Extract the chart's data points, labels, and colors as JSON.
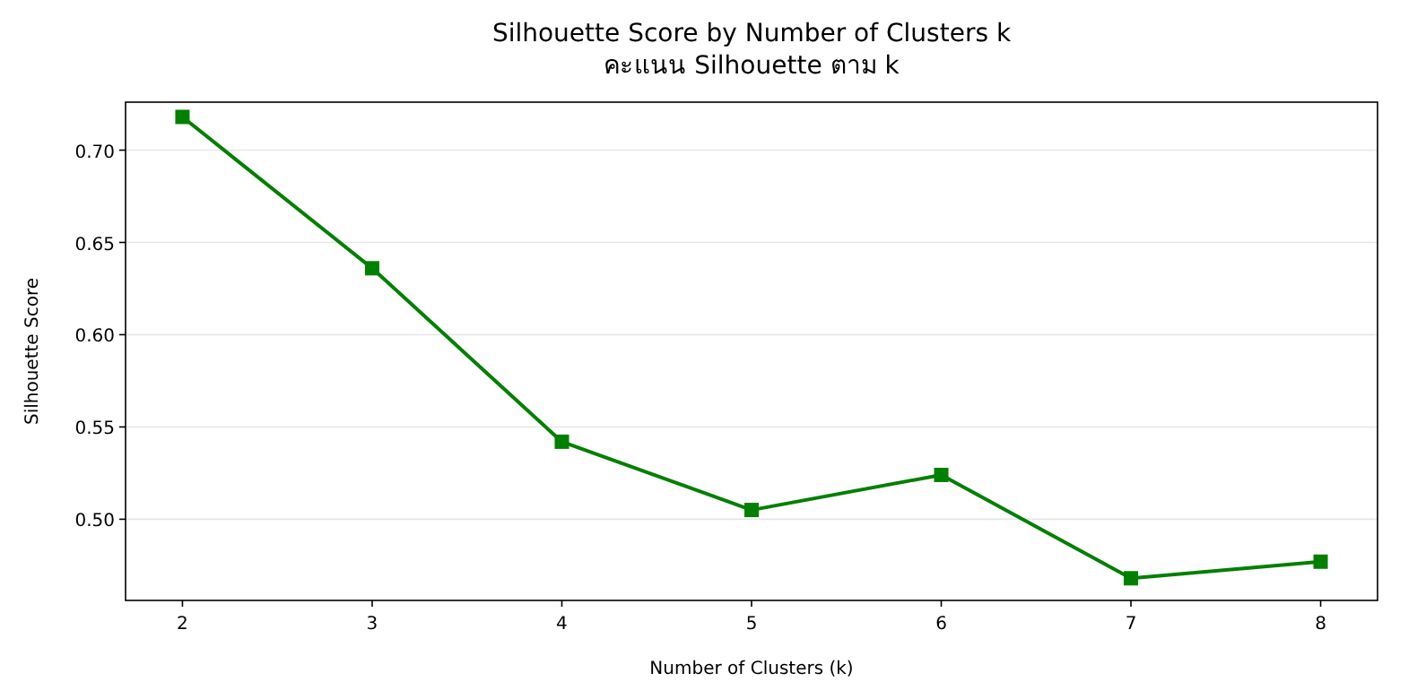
{
  "chart_data": {
    "type": "line",
    "title": "Silhouette Score by Number of Clusters k\nคะแนน Silhouette ตาม k",
    "xlabel": "Number of Clusters (k)",
    "ylabel": "Silhouette Score",
    "x": [
      2,
      3,
      4,
      5,
      6,
      7,
      8
    ],
    "series": [
      {
        "color": "#008000",
        "values": [
          0.718,
          0.636,
          0.542,
          0.505,
          0.524,
          0.468,
          0.477
        ]
      }
    ],
    "xlim": [
      1.7,
      8.3
    ],
    "xticks": [
      2,
      3,
      4,
      5,
      6,
      7,
      8
    ],
    "ylim": [
      0.456,
      0.726
    ],
    "yticks": [
      {
        "value": 0.5,
        "label": "0.50"
      },
      {
        "value": 0.55,
        "label": "0.55"
      },
      {
        "value": 0.6,
        "label": "0.60"
      },
      {
        "value": 0.65,
        "label": "0.65"
      },
      {
        "value": 0.7,
        "label": "0.70"
      }
    ],
    "grid": "y",
    "marker": "square",
    "line_style": "solid"
  }
}
